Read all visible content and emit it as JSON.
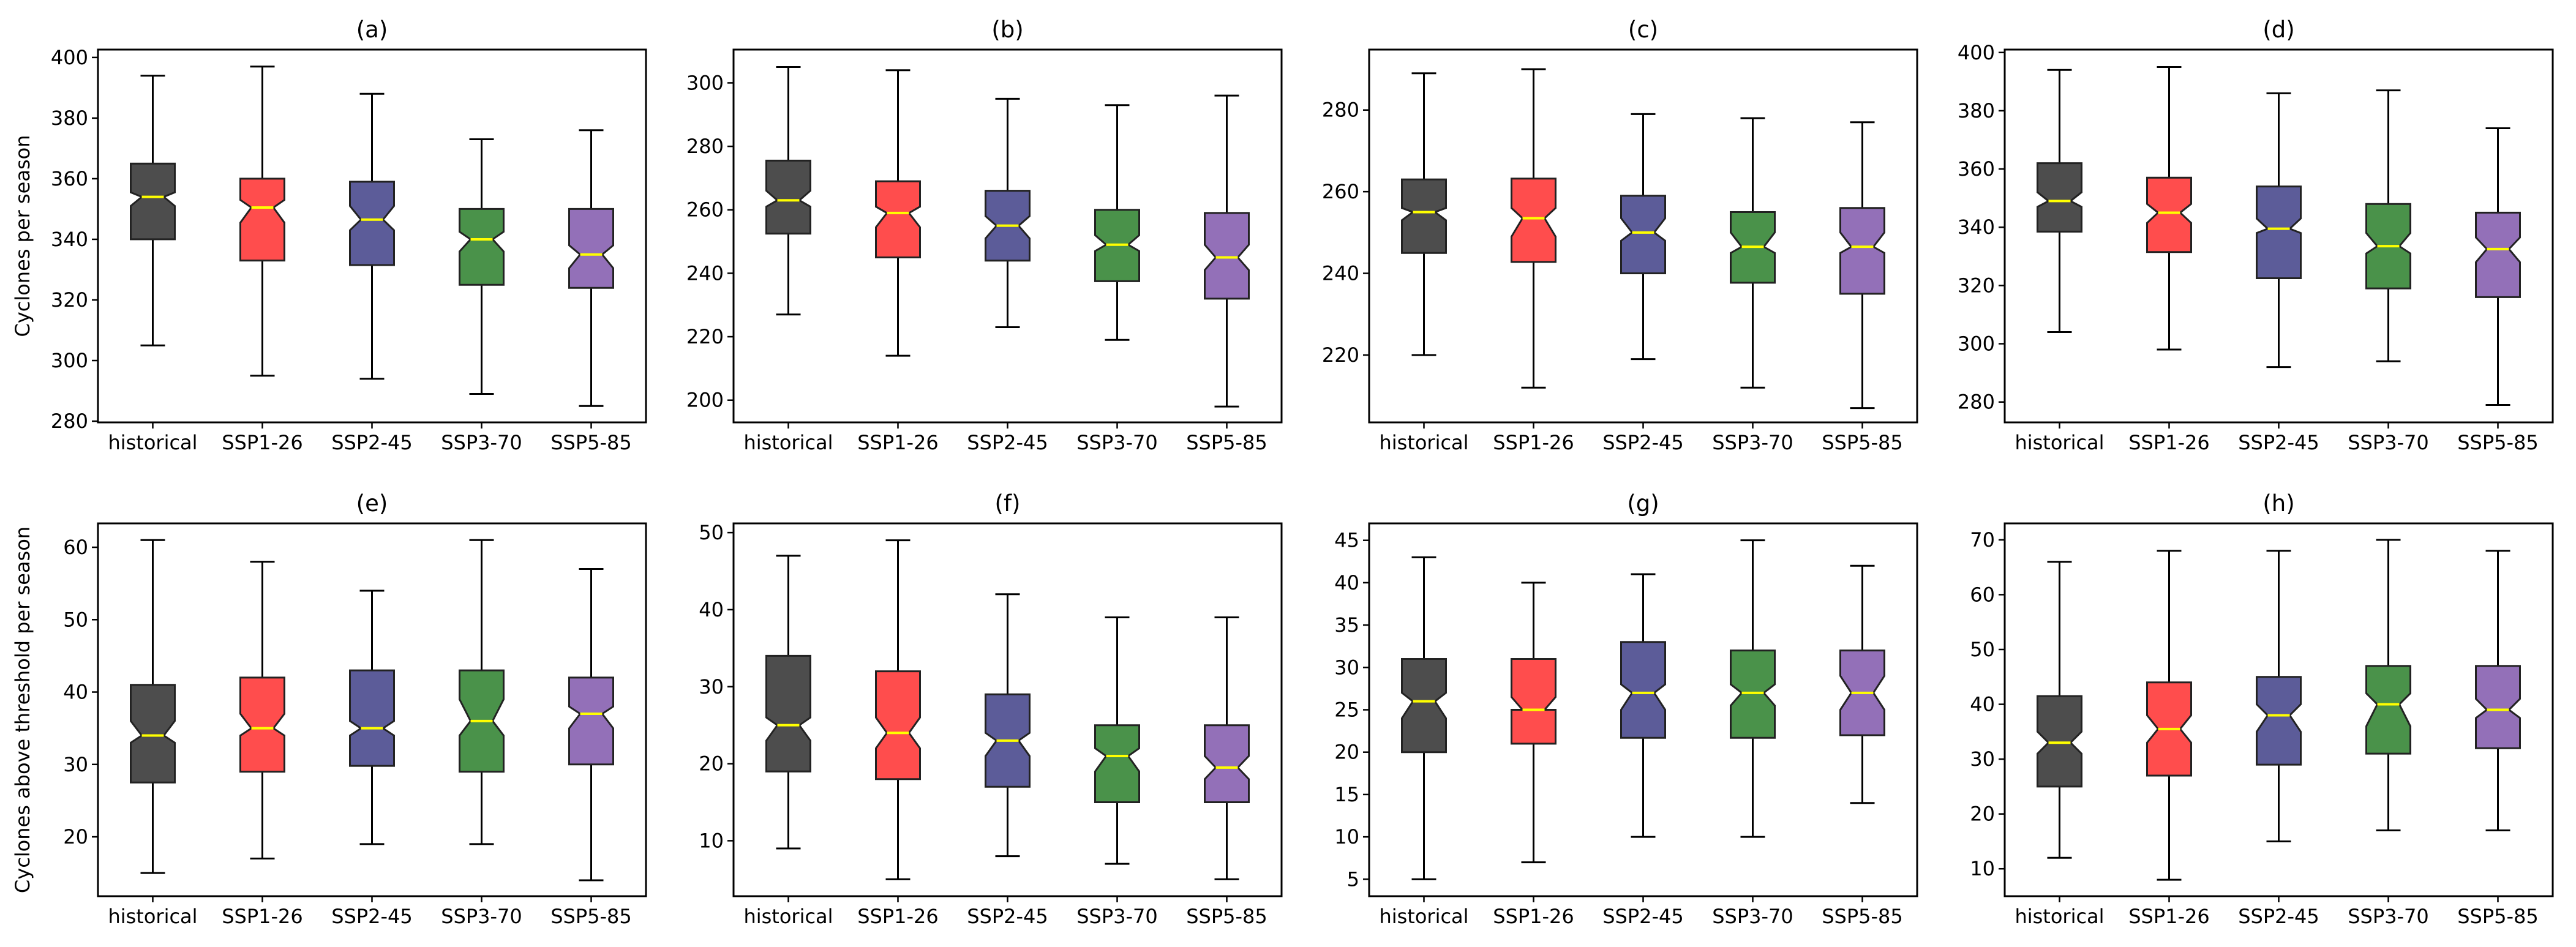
{
  "chart_data": [
    {
      "type": "box",
      "title": "(a)",
      "ylabel": "Cyclones per season",
      "xlabel": "",
      "categories": [
        "historical",
        "SSP1-26",
        "SSP2-45",
        "SSP3-70",
        "SSP5-85"
      ],
      "ylim": [
        279.6,
        402.6
      ],
      "yticks": [
        280,
        300,
        320,
        340,
        360,
        380,
        400
      ],
      "boxes": [
        {
          "whisker_low": 305,
          "q1": 340,
          "notch_low": 351,
          "median": 354,
          "notch_high": 355.5,
          "q3": 365,
          "whisker_high": 394
        },
        {
          "whisker_low": 295,
          "q1": 333,
          "notch_low": 345.5,
          "median": 350.5,
          "notch_high": 353,
          "q3": 360,
          "whisker_high": 397
        },
        {
          "whisker_low": 294,
          "q1": 331.5,
          "notch_low": 343,
          "median": 346.5,
          "notch_high": 351,
          "q3": 359,
          "whisker_high": 388
        },
        {
          "whisker_low": 289,
          "q1": 325,
          "notch_low": 336,
          "median": 340,
          "notch_high": 342.5,
          "q3": 350,
          "whisker_high": 373
        },
        {
          "whisker_low": 285,
          "q1": 324,
          "notch_low": 330.5,
          "median": 335,
          "notch_high": 338,
          "q3": 350,
          "whisker_high": 376
        }
      ]
    },
    {
      "type": "box",
      "title": "(b)",
      "ylabel": "",
      "xlabel": "",
      "categories": [
        "historical",
        "SSP1-26",
        "SSP2-45",
        "SSP3-70",
        "SSP5-85"
      ],
      "ylim": [
        193,
        310.5
      ],
      "yticks": [
        200,
        220,
        240,
        260,
        280,
        300
      ],
      "boxes": [
        {
          "whisker_low": 227,
          "q1": 252.5,
          "notch_low": 261,
          "median": 263,
          "notch_high": 266,
          "q3": 275.5,
          "whisker_high": 305
        },
        {
          "whisker_low": 214,
          "q1": 245,
          "notch_low": 254.5,
          "median": 259,
          "notch_high": 261,
          "q3": 269,
          "whisker_high": 304
        },
        {
          "whisker_low": 223,
          "q1": 244,
          "notch_low": 251,
          "median": 255,
          "notch_high": 258,
          "q3": 266,
          "whisker_high": 295
        },
        {
          "whisker_low": 219,
          "q1": 237.5,
          "notch_low": 247,
          "median": 249,
          "notch_high": 252,
          "q3": 260,
          "whisker_high": 293
        },
        {
          "whisker_low": 198,
          "q1": 232,
          "notch_low": 241,
          "median": 245,
          "notch_high": 249,
          "q3": 259,
          "whisker_high": 296
        }
      ]
    },
    {
      "type": "box",
      "title": "(c)",
      "ylabel": "",
      "xlabel": "",
      "categories": [
        "historical",
        "SSP1-26",
        "SSP2-45",
        "SSP3-70",
        "SSP5-85"
      ],
      "ylim": [
        203.5,
        294.8
      ],
      "yticks": [
        220,
        240,
        260,
        280
      ],
      "boxes": [
        {
          "whisker_low": 220,
          "q1": 245,
          "notch_low": 253,
          "median": 255,
          "notch_high": 256,
          "q3": 263,
          "whisker_high": 289
        },
        {
          "whisker_low": 212,
          "q1": 242.8,
          "notch_low": 249,
          "median": 253.5,
          "notch_high": 256,
          "q3": 263.2,
          "whisker_high": 290
        },
        {
          "whisker_low": 219,
          "q1": 240,
          "notch_low": 248,
          "median": 250,
          "notch_high": 253.5,
          "q3": 259,
          "whisker_high": 279
        },
        {
          "whisker_low": 212,
          "q1": 237.7,
          "notch_low": 245,
          "median": 246.5,
          "notch_high": 250,
          "q3": 255,
          "whisker_high": 278
        },
        {
          "whisker_low": 207,
          "q1": 235,
          "notch_low": 245,
          "median": 246.5,
          "notch_high": 250,
          "q3": 256,
          "whisker_high": 277
        }
      ]
    },
    {
      "type": "box",
      "title": "(d)",
      "ylabel": "",
      "xlabel": "",
      "categories": [
        "historical",
        "SSP1-26",
        "SSP2-45",
        "SSP3-70",
        "SSP5-85"
      ],
      "ylim": [
        273,
        401
      ],
      "yticks": [
        280,
        300,
        320,
        340,
        360,
        380,
        400
      ],
      "boxes": [
        {
          "whisker_low": 304,
          "q1": 338.5,
          "notch_low": 347,
          "median": 349,
          "notch_high": 352,
          "q3": 362,
          "whisker_high": 394
        },
        {
          "whisker_low": 298,
          "q1": 331.5,
          "notch_low": 341.5,
          "median": 345,
          "notch_high": 348,
          "q3": 357,
          "whisker_high": 395
        },
        {
          "whisker_low": 292,
          "q1": 322.5,
          "notch_low": 338,
          "median": 339.5,
          "notch_high": 343,
          "q3": 354,
          "whisker_high": 386
        },
        {
          "whisker_low": 294,
          "q1": 319,
          "notch_low": 331,
          "median": 333.5,
          "notch_high": 338,
          "q3": 348,
          "whisker_high": 387
        },
        {
          "whisker_low": 279,
          "q1": 316,
          "notch_low": 328,
          "median": 332.5,
          "notch_high": 336.5,
          "q3": 345,
          "whisker_high": 374
        }
      ]
    },
    {
      "type": "box",
      "title": "(e)",
      "ylabel": "Cyclones above threshold per season",
      "xlabel": "",
      "categories": [
        "historical",
        "SSP1-26",
        "SSP2-45",
        "SSP3-70",
        "SSP5-85"
      ],
      "ylim": [
        11.8,
        63.3
      ],
      "yticks": [
        20,
        30,
        40,
        50,
        60
      ],
      "boxes": [
        {
          "whisker_low": 15,
          "q1": 27.5,
          "notch_low": 33,
          "median": 34,
          "notch_high": 36,
          "q3": 41,
          "whisker_high": 61
        },
        {
          "whisker_low": 17,
          "q1": 29,
          "notch_low": 34,
          "median": 35,
          "notch_high": 37,
          "q3": 42,
          "whisker_high": 58
        },
        {
          "whisker_low": 19,
          "q1": 29.8,
          "notch_low": 34,
          "median": 35,
          "notch_high": 36,
          "q3": 43,
          "whisker_high": 54
        },
        {
          "whisker_low": 19,
          "q1": 29,
          "notch_low": 34,
          "median": 36,
          "notch_high": 39,
          "q3": 43,
          "whisker_high": 61
        },
        {
          "whisker_low": 14,
          "q1": 30,
          "notch_low": 35,
          "median": 37,
          "notch_high": 38,
          "q3": 42,
          "whisker_high": 57
        }
      ]
    },
    {
      "type": "box",
      "title": "(f)",
      "ylabel": "",
      "xlabel": "",
      "categories": [
        "historical",
        "SSP1-26",
        "SSP2-45",
        "SSP3-70",
        "SSP5-85"
      ],
      "ylim": [
        2.8,
        51.2
      ],
      "yticks": [
        10,
        20,
        30,
        40,
        50
      ],
      "boxes": [
        {
          "whisker_low": 9,
          "q1": 19,
          "notch_low": 23,
          "median": 25,
          "notch_high": 26,
          "q3": 34,
          "whisker_high": 47
        },
        {
          "whisker_low": 5,
          "q1": 18,
          "notch_low": 22,
          "median": 24,
          "notch_high": 26,
          "q3": 32,
          "whisker_high": 49
        },
        {
          "whisker_low": 8,
          "q1": 17,
          "notch_low": 21,
          "median": 23,
          "notch_high": 24,
          "q3": 29,
          "whisker_high": 42
        },
        {
          "whisker_low": 7,
          "q1": 15,
          "notch_low": 19,
          "median": 21,
          "notch_high": 22,
          "q3": 25,
          "whisker_high": 39
        },
        {
          "whisker_low": 5,
          "q1": 15,
          "notch_low": 18,
          "median": 19.5,
          "notch_high": 21,
          "q3": 25,
          "whisker_high": 39
        }
      ]
    },
    {
      "type": "box",
      "title": "(g)",
      "ylabel": "",
      "xlabel": "",
      "categories": [
        "historical",
        "SSP1-26",
        "SSP2-45",
        "SSP3-70",
        "SSP5-85"
      ],
      "ylim": [
        3,
        47
      ],
      "yticks": [
        5,
        10,
        15,
        20,
        25,
        30,
        35,
        40,
        45
      ],
      "boxes": [
        {
          "whisker_low": 5,
          "q1": 20,
          "notch_low": 24,
          "median": 26,
          "notch_high": 27,
          "q3": 31,
          "whisker_high": 43
        },
        {
          "whisker_low": 7,
          "q1": 21,
          "notch_low": 25,
          "median": 25,
          "notch_high": 26.5,
          "q3": 31,
          "whisker_high": 40
        },
        {
          "whisker_low": 10,
          "q1": 21.7,
          "notch_low": 25,
          "median": 27,
          "notch_high": 28,
          "q3": 33,
          "whisker_high": 41
        },
        {
          "whisker_low": 10,
          "q1": 21.7,
          "notch_low": 25.5,
          "median": 27,
          "notch_high": 28,
          "q3": 32,
          "whisker_high": 45
        },
        {
          "whisker_low": 14,
          "q1": 22,
          "notch_low": 25,
          "median": 27,
          "notch_high": 29,
          "q3": 32,
          "whisker_high": 42
        }
      ]
    },
    {
      "type": "box",
      "title": "(h)",
      "ylabel": "",
      "xlabel": "",
      "categories": [
        "historical",
        "SSP1-26",
        "SSP2-45",
        "SSP3-70",
        "SSP5-85"
      ],
      "ylim": [
        5,
        73
      ],
      "yticks": [
        10,
        20,
        30,
        40,
        50,
        60,
        70
      ],
      "boxes": [
        {
          "whisker_low": 12,
          "q1": 25,
          "notch_low": 31,
          "median": 33,
          "notch_high": 35,
          "q3": 41.5,
          "whisker_high": 66
        },
        {
          "whisker_low": 8,
          "q1": 27,
          "notch_low": 33,
          "median": 35.5,
          "notch_high": 38,
          "q3": 44,
          "whisker_high": 68
        },
        {
          "whisker_low": 15,
          "q1": 29,
          "notch_low": 35,
          "median": 38,
          "notch_high": 40,
          "q3": 45,
          "whisker_high": 68
        },
        {
          "whisker_low": 17,
          "q1": 31,
          "notch_low": 36,
          "median": 40,
          "notch_high": 42,
          "q3": 47,
          "whisker_high": 70
        },
        {
          "whisker_low": 17,
          "q1": 32,
          "notch_low": 37.5,
          "median": 39,
          "notch_high": 41,
          "q3": 47,
          "whisker_high": 68
        }
      ]
    }
  ],
  "colors": {
    "series": [
      "#4d4d4d",
      "#ff4d4d",
      "#5c5c99",
      "#4a924a",
      "#9370b8"
    ],
    "median": "#ffff00",
    "edge": "#222222",
    "axis": "#000000"
  }
}
